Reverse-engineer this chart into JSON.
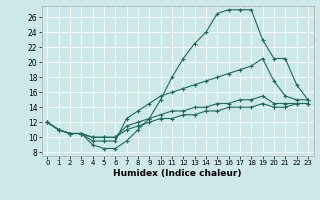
{
  "xlabel": "Humidex (Indice chaleur)",
  "ylabel": "",
  "bg_color": "#cce8e8",
  "grid_color": "#ffffff",
  "line_color": "#1a6b5a",
  "xlim": [
    -0.5,
    23.5
  ],
  "ylim": [
    7.5,
    27.5
  ],
  "xticks": [
    0,
    1,
    2,
    3,
    4,
    5,
    6,
    7,
    8,
    9,
    10,
    11,
    12,
    13,
    14,
    15,
    16,
    17,
    18,
    19,
    20,
    21,
    22,
    23
  ],
  "yticks": [
    8,
    10,
    12,
    14,
    16,
    18,
    20,
    22,
    24,
    26
  ],
  "lines": [
    {
      "x": [
        0,
        1,
        2,
        3,
        4,
        5,
        6,
        7,
        8,
        9,
        10,
        11,
        12,
        13,
        14,
        15,
        16,
        17,
        18,
        19,
        20,
        21,
        22,
        23
      ],
      "y": [
        12,
        11,
        10.5,
        10.5,
        9,
        8.5,
        8.5,
        9.5,
        11,
        12.5,
        15,
        18,
        20.5,
        22.5,
        24,
        26.5,
        27,
        27,
        27,
        23,
        20.5,
        20.5,
        17,
        15
      ]
    },
    {
      "x": [
        0,
        1,
        2,
        3,
        4,
        5,
        6,
        7,
        8,
        9,
        10,
        11,
        12,
        13,
        14,
        15,
        16,
        17,
        18,
        19,
        20,
        21,
        22,
        23
      ],
      "y": [
        12,
        11,
        10.5,
        10.5,
        9.5,
        9.5,
        9.5,
        12.5,
        13.5,
        14.5,
        15.5,
        16,
        16.5,
        17,
        17.5,
        18,
        18.5,
        19,
        19.5,
        20.5,
        17.5,
        15.5,
        15,
        15
      ]
    },
    {
      "x": [
        0,
        1,
        2,
        3,
        4,
        5,
        6,
        7,
        8,
        9,
        10,
        11,
        12,
        13,
        14,
        15,
        16,
        17,
        18,
        19,
        20,
        21,
        22,
        23
      ],
      "y": [
        12,
        11,
        10.5,
        10.5,
        10,
        10,
        10,
        11.5,
        12,
        12.5,
        13,
        13.5,
        13.5,
        14,
        14,
        14.5,
        14.5,
        15,
        15,
        15.5,
        14.5,
        14.5,
        14.5,
        14.5
      ]
    },
    {
      "x": [
        0,
        1,
        2,
        3,
        4,
        5,
        6,
        7,
        8,
        9,
        10,
        11,
        12,
        13,
        14,
        15,
        16,
        17,
        18,
        19,
        20,
        21,
        22,
        23
      ],
      "y": [
        12,
        11,
        10.5,
        10.5,
        10,
        10,
        10,
        11,
        11.5,
        12,
        12.5,
        12.5,
        13,
        13,
        13.5,
        13.5,
        14,
        14,
        14,
        14.5,
        14,
        14,
        14.5,
        14.5
      ]
    }
  ]
}
